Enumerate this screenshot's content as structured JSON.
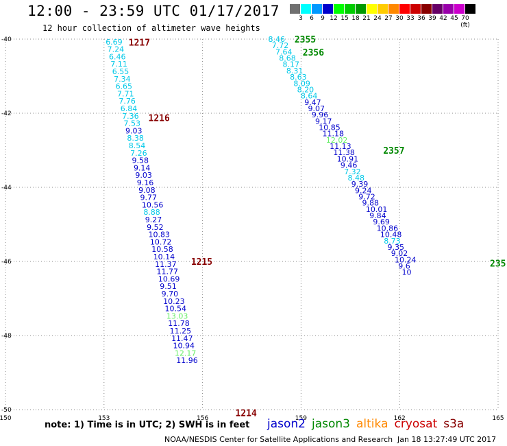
{
  "header": {
    "title": "12:00 - 23:59 UTC 01/17/2017",
    "subtitle": "12 hour collection of altimeter wave heights"
  },
  "colorbar": {
    "colors": [
      "#707070",
      "#00ffff",
      "#0099ff",
      "#0000cc",
      "#00ff00",
      "#00cc00",
      "#009900",
      "#ffff00",
      "#ffcc00",
      "#ff8800",
      "#ff0000",
      "#cc0000",
      "#880000",
      "#660066",
      "#9900aa",
      "#cc00cc",
      "#000000"
    ],
    "labels": [
      "3",
      "6",
      "9",
      "12",
      "15",
      "18",
      "21",
      "24",
      "27",
      "30",
      "33",
      "36",
      "39",
      "42",
      "45",
      "70 (ft)"
    ]
  },
  "axes": {
    "x_ticks": [
      150,
      153,
      156,
      159,
      162,
      165
    ],
    "y_ticks": [
      -40,
      -42,
      -44,
      -46,
      -48,
      -50
    ]
  },
  "note": "note: 1) Time is in UTC; 2) SWH is in feet",
  "legend": [
    {
      "name": "jason2",
      "color": "#0000cc"
    },
    {
      "name": "jason3",
      "color": "#008800"
    },
    {
      "name": "altika",
      "color": "#ff8800"
    },
    {
      "name": "cryosat",
      "color": "#cc0000"
    },
    {
      "name": "s3a",
      "color": "#880000"
    }
  ],
  "credit": "NOAA/NESDIS Center for Satellite Applications and Research",
  "credit_time": "Jan 18 13:27:49 UTC 2017",
  "chart_data": {
    "type": "scatter",
    "xlim": [
      150,
      165
    ],
    "ylim": [
      -50,
      -40
    ],
    "time_labels": [
      {
        "text": "1217",
        "lon": 153.75,
        "lat": -40.08,
        "color": "#880000"
      },
      {
        "text": "1216",
        "lon": 154.35,
        "lat": -42.12,
        "color": "#880000"
      },
      {
        "text": "1215",
        "lon": 155.65,
        "lat": -46.0,
        "color": "#880000"
      },
      {
        "text": "1214",
        "lon": 157.0,
        "lat": -50.08,
        "color": "#880000"
      },
      {
        "text": "2355",
        "lon": 158.8,
        "lat": -40.0,
        "color": "#008800"
      },
      {
        "text": "2356",
        "lon": 159.05,
        "lat": -40.35,
        "color": "#008800"
      },
      {
        "text": "2357",
        "lon": 161.5,
        "lat": -43.0,
        "color": "#008800"
      },
      {
        "text": "235",
        "lon": 164.75,
        "lat": -46.05,
        "color": "#008800"
      }
    ],
    "tracks": [
      {
        "satellite": "s3a",
        "points": [
          {
            "lon": 153.05,
            "lat": -40.07,
            "swh": "6.69",
            "color": "#00c8e8"
          },
          {
            "lon": 153.1,
            "lat": -40.27,
            "swh": "7.24",
            "color": "#00c8e8"
          },
          {
            "lon": 153.15,
            "lat": -40.47,
            "swh": "6.46",
            "color": "#00c8e8"
          },
          {
            "lon": 153.2,
            "lat": -40.67,
            "swh": "7.11",
            "color": "#00c8e8"
          },
          {
            "lon": 153.25,
            "lat": -40.87,
            "swh": "6.55",
            "color": "#00c8e8"
          },
          {
            "lon": 153.3,
            "lat": -41.07,
            "swh": "7.34",
            "color": "#00c8e8"
          },
          {
            "lon": 153.35,
            "lat": -41.27,
            "swh": "6.65",
            "color": "#00c8e8"
          },
          {
            "lon": 153.4,
            "lat": -41.47,
            "swh": "7.71",
            "color": "#00c8e8"
          },
          {
            "lon": 153.45,
            "lat": -41.67,
            "swh": "7.76",
            "color": "#00c8e8"
          },
          {
            "lon": 153.5,
            "lat": -41.87,
            "swh": "6.84",
            "color": "#00c8e8"
          },
          {
            "lon": 153.55,
            "lat": -42.07,
            "swh": "7.36",
            "color": "#00c8e8"
          },
          {
            "lon": 153.6,
            "lat": -42.27,
            "swh": "7.53",
            "color": "#00c8e8"
          },
          {
            "lon": 153.65,
            "lat": -42.47,
            "swh": "9.03",
            "color": "#0000cc"
          },
          {
            "lon": 153.7,
            "lat": -42.67,
            "swh": "8.38",
            "color": "#00c8e8"
          },
          {
            "lon": 153.75,
            "lat": -42.87,
            "swh": "8.54",
            "color": "#00c8e8"
          },
          {
            "lon": 153.8,
            "lat": -43.07,
            "swh": "7.26",
            "color": "#00c8e8"
          },
          {
            "lon": 153.85,
            "lat": -43.27,
            "swh": "9.58",
            "color": "#0000cc"
          },
          {
            "lon": 153.9,
            "lat": -43.47,
            "swh": "9.14",
            "color": "#0000cc"
          },
          {
            "lon": 153.95,
            "lat": -43.67,
            "swh": "9.03",
            "color": "#0000cc"
          },
          {
            "lon": 154.0,
            "lat": -43.87,
            "swh": "9.16",
            "color": "#0000cc"
          },
          {
            "lon": 154.05,
            "lat": -44.07,
            "swh": "9.08",
            "color": "#0000cc"
          },
          {
            "lon": 154.1,
            "lat": -44.27,
            "swh": "9.77",
            "color": "#0000cc"
          },
          {
            "lon": 154.15,
            "lat": -44.47,
            "swh": "10.56",
            "color": "#0000cc"
          },
          {
            "lon": 154.2,
            "lat": -44.67,
            "swh": "8.88",
            "color": "#00c8e8"
          },
          {
            "lon": 154.25,
            "lat": -44.87,
            "swh": "9.27",
            "color": "#0000cc"
          },
          {
            "lon": 154.3,
            "lat": -45.07,
            "swh": "9.52",
            "color": "#0000cc"
          },
          {
            "lon": 154.35,
            "lat": -45.27,
            "swh": "10.83",
            "color": "#0000cc"
          },
          {
            "lon": 154.4,
            "lat": -45.47,
            "swh": "10.72",
            "color": "#0000cc"
          },
          {
            "lon": 154.45,
            "lat": -45.67,
            "swh": "10.58",
            "color": "#0000cc"
          },
          {
            "lon": 154.5,
            "lat": -45.87,
            "swh": "10.14",
            "color": "#0000cc"
          },
          {
            "lon": 154.55,
            "lat": -46.07,
            "swh": "11.37",
            "color": "#0000cc"
          },
          {
            "lon": 154.6,
            "lat": -46.27,
            "swh": "11.77",
            "color": "#0000cc"
          },
          {
            "lon": 154.65,
            "lat": -46.47,
            "swh": "10.69",
            "color": "#0000cc"
          },
          {
            "lon": 154.7,
            "lat": -46.67,
            "swh": "9.51",
            "color": "#0000cc"
          },
          {
            "lon": 154.75,
            "lat": -46.87,
            "swh": "9.70",
            "color": "#0000cc"
          },
          {
            "lon": 154.8,
            "lat": -47.07,
            "swh": "10.23",
            "color": "#0000cc"
          },
          {
            "lon": 154.85,
            "lat": -47.27,
            "swh": "10.54",
            "color": "#0000cc"
          },
          {
            "lon": 154.9,
            "lat": -47.47,
            "swh": "13.03",
            "color": "#66ee66"
          },
          {
            "lon": 154.95,
            "lat": -47.67,
            "swh": "11.78",
            "color": "#0000cc"
          },
          {
            "lon": 155.0,
            "lat": -47.87,
            "swh": "11.25",
            "color": "#0000cc"
          },
          {
            "lon": 155.05,
            "lat": -48.07,
            "swh": "11.47",
            "color": "#0000cc"
          },
          {
            "lon": 155.1,
            "lat": -48.27,
            "swh": "10.94",
            "color": "#0000cc"
          },
          {
            "lon": 155.15,
            "lat": -48.47,
            "swh": "12.17",
            "color": "#66ee66"
          },
          {
            "lon": 155.2,
            "lat": -48.67,
            "swh": "11.96",
            "color": "#0000cc"
          }
        ]
      },
      {
        "satellite": "jason3",
        "points": [
          {
            "lon": 158.0,
            "lat": -40.0,
            "swh": "8.46",
            "color": "#00c8e8"
          },
          {
            "lon": 158.11,
            "lat": -40.17,
            "swh": "7.72",
            "color": "#00c8e8"
          },
          {
            "lon": 158.22,
            "lat": -40.34,
            "swh": "7.64",
            "color": "#00c8e8"
          },
          {
            "lon": 158.33,
            "lat": -40.51,
            "swh": "8.68",
            "color": "#00c8e8"
          },
          {
            "lon": 158.44,
            "lat": -40.68,
            "swh": "8.17",
            "color": "#00c8e8"
          },
          {
            "lon": 158.55,
            "lat": -40.85,
            "swh": "8.31",
            "color": "#00c8e8"
          },
          {
            "lon": 158.66,
            "lat": -41.02,
            "swh": "8.63",
            "color": "#00c8e8"
          },
          {
            "lon": 158.77,
            "lat": -41.19,
            "swh": "8.09",
            "color": "#00c8e8"
          },
          {
            "lon": 158.88,
            "lat": -41.36,
            "swh": "8.20",
            "color": "#00c8e8"
          },
          {
            "lon": 158.99,
            "lat": -41.53,
            "swh": "8.64",
            "color": "#00c8e8"
          },
          {
            "lon": 159.1,
            "lat": -41.7,
            "swh": "9.47",
            "color": "#0000cc"
          },
          {
            "lon": 159.21,
            "lat": -41.87,
            "swh": "9.07",
            "color": "#0000cc"
          },
          {
            "lon": 159.32,
            "lat": -42.04,
            "swh": "9.96",
            "color": "#0000cc"
          },
          {
            "lon": 159.43,
            "lat": -42.21,
            "swh": "9.17",
            "color": "#0000cc"
          },
          {
            "lon": 159.54,
            "lat": -42.38,
            "swh": "10.85",
            "color": "#0000cc"
          },
          {
            "lon": 159.65,
            "lat": -42.55,
            "swh": "11.18",
            "color": "#0000cc"
          },
          {
            "lon": 159.76,
            "lat": -42.72,
            "swh": "12.02",
            "color": "#66ee66"
          },
          {
            "lon": 159.87,
            "lat": -42.89,
            "swh": "11.13",
            "color": "#0000cc"
          },
          {
            "lon": 159.98,
            "lat": -43.06,
            "swh": "11.38",
            "color": "#0000cc"
          },
          {
            "lon": 160.09,
            "lat": -43.23,
            "swh": "10.91",
            "color": "#0000cc"
          },
          {
            "lon": 160.2,
            "lat": -43.4,
            "swh": "9.46",
            "color": "#0000cc"
          },
          {
            "lon": 160.31,
            "lat": -43.57,
            "swh": "7.32",
            "color": "#00c8e8"
          },
          {
            "lon": 160.42,
            "lat": -43.74,
            "swh": "8.48",
            "color": "#00c8e8"
          },
          {
            "lon": 160.53,
            "lat": -43.91,
            "swh": "9.39",
            "color": "#0000cc"
          },
          {
            "lon": 160.64,
            "lat": -44.08,
            "swh": "9.24",
            "color": "#0000cc"
          },
          {
            "lon": 160.75,
            "lat": -44.25,
            "swh": "9.72",
            "color": "#0000cc"
          },
          {
            "lon": 160.86,
            "lat": -44.42,
            "swh": "9.88",
            "color": "#0000cc"
          },
          {
            "lon": 160.97,
            "lat": -44.59,
            "swh": "10.01",
            "color": "#0000cc"
          },
          {
            "lon": 161.08,
            "lat": -44.76,
            "swh": "9.84",
            "color": "#0000cc"
          },
          {
            "lon": 161.19,
            "lat": -44.93,
            "swh": "9.69",
            "color": "#0000cc"
          },
          {
            "lon": 161.3,
            "lat": -45.1,
            "swh": "10.86",
            "color": "#0000cc"
          },
          {
            "lon": 161.41,
            "lat": -45.27,
            "swh": "10.48",
            "color": "#0000cc"
          },
          {
            "lon": 161.52,
            "lat": -45.44,
            "swh": "8.73",
            "color": "#00c8e8"
          },
          {
            "lon": 161.63,
            "lat": -45.61,
            "swh": "9.35",
            "color": "#0000cc"
          },
          {
            "lon": 161.74,
            "lat": -45.78,
            "swh": "9.02",
            "color": "#0000cc"
          },
          {
            "lon": 161.85,
            "lat": -45.95,
            "swh": "10.24",
            "color": "#0000cc"
          },
          {
            "lon": 161.96,
            "lat": -46.12,
            "swh": "9.6",
            "color": "#0000cc"
          },
          {
            "lon": 162.07,
            "lat": -46.29,
            "swh": "10",
            "color": "#0000cc"
          }
        ]
      }
    ]
  }
}
